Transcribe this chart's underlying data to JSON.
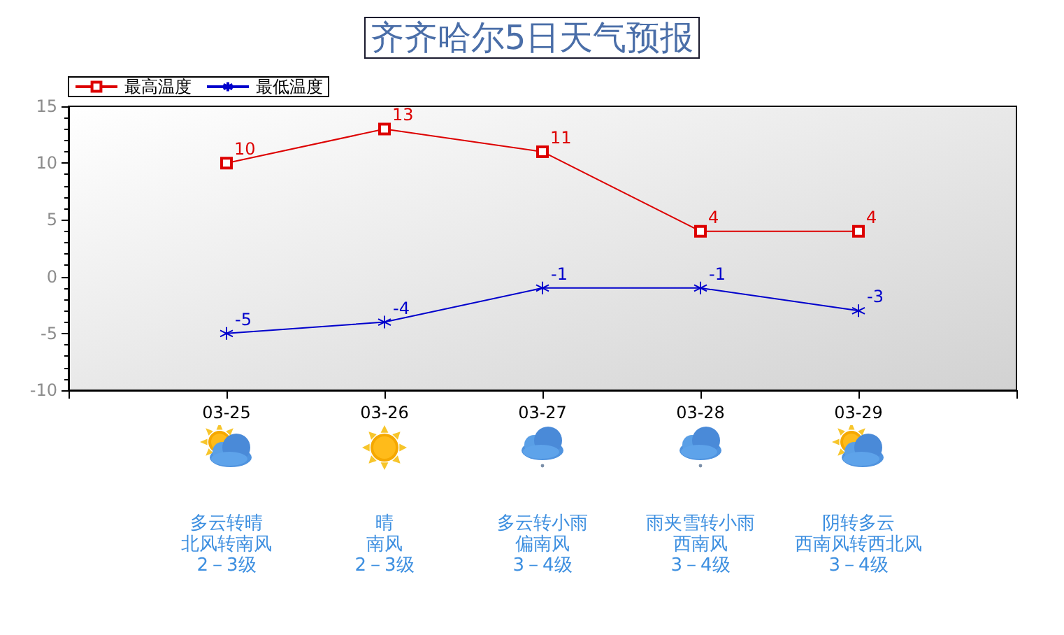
{
  "chart_data": {
    "type": "line",
    "title": "齐齐哈尔5日天气预报",
    "categories": [
      "03-25",
      "03-26",
      "03-27",
      "03-28",
      "03-29"
    ],
    "series": [
      {
        "name": "最高温度",
        "color": "#dd0000",
        "marker": "square",
        "values": [
          10,
          13,
          11,
          4,
          4
        ]
      },
      {
        "name": "最低温度",
        "color": "#0000cc",
        "marker": "cross",
        "values": [
          -5,
          -4,
          -1,
          -1,
          -3
        ]
      }
    ],
    "ylim": [
      -10,
      15
    ],
    "yticks": [
      -10,
      -5,
      0,
      5,
      10,
      15
    ],
    "data_labels": true,
    "legend": "top left",
    "annotations": [
      "多云转晴",
      "北风转南风",
      "2－3级",
      "晴",
      "南风",
      "2－3级",
      "多云转小雨",
      "偏南风",
      "3－4级",
      "雨夹雪转小雨",
      "西南风",
      "3－4级",
      "阴转多云",
      "西南风转西北风",
      "3－4级"
    ]
  }
}
